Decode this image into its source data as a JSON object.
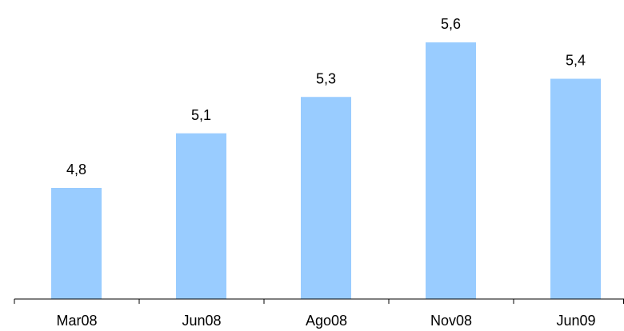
{
  "chart_data": {
    "type": "bar",
    "categories": [
      "Mar08",
      "Jun08",
      "Ago08",
      "Nov08",
      "Jun09"
    ],
    "values": [
      4.8,
      5.1,
      5.3,
      5.6,
      5.4
    ],
    "value_labels": [
      "4,8",
      "5,1",
      "5,3",
      "5,6",
      "5,4"
    ],
    "title": "",
    "xlabel": "",
    "ylabel": "",
    "bar_color": "#99CCFF",
    "axis_color": "#000000",
    "grid": false,
    "legend": "none"
  }
}
